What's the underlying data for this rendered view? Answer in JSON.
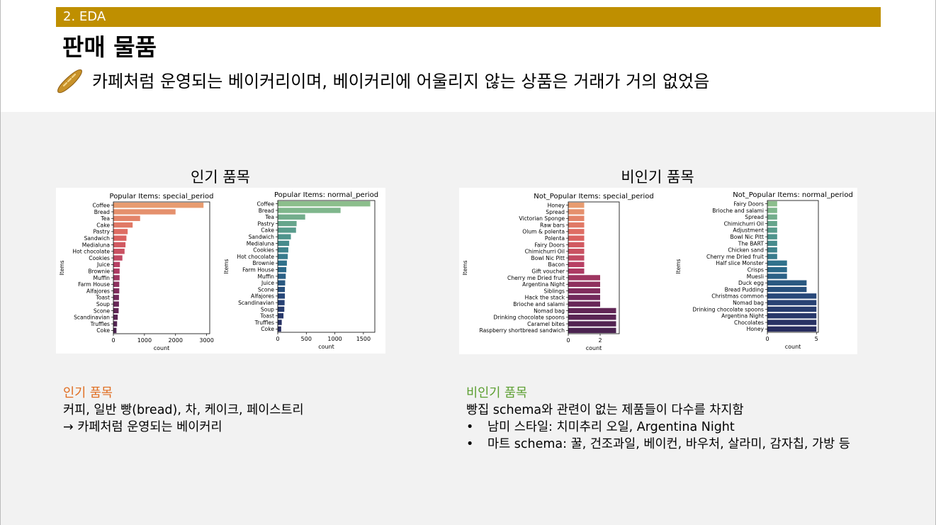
{
  "header": {
    "section": "2. EDA",
    "title": "판매 물품",
    "subtitle": "카페처럼 운영되는 베이커리이며, 베이커리에 어울리지 않는 상품은 거래가 거의 없었음"
  },
  "panels": {
    "popular_title": "인기 품목",
    "unpopular_title": "비인기 품목"
  },
  "notes": {
    "popular": {
      "heading": "인기 품목",
      "line1": "커피, 일반 빵(bread), 차, 케이크, 페이스트리",
      "line2": "→ 카페처럼 운영되는 베이커리"
    },
    "unpopular": {
      "heading": "비인기 품목",
      "line1": "빵집 schema와 관련이 없는 제품들이 다수를 차지함",
      "bullet1": "남미 스타일: 치미추리 오일, Argentina Night",
      "bullet2": "마트 schema: 꿀, 건조과일, 베이컨, 바우처, 살라미, 감자칩, 가방 등",
      "bullet_symbol": "•"
    }
  },
  "chart_data": [
    {
      "type": "bar",
      "orientation": "horizontal",
      "title": "Popular Items: special_period",
      "xlabel": "count",
      "ylabel": "Items",
      "xlim": [
        0,
        3100
      ],
      "xticks": [
        0,
        1000,
        2000,
        3000
      ],
      "palette": "flare",
      "categories": [
        "Coffee",
        "Bread",
        "Tea",
        "Cake",
        "Pastry",
        "Sandwich",
        "Medialuna",
        "Hot chocolate",
        "Cookies",
        "Juice",
        "Brownie",
        "Muffin",
        "Farm House",
        "Alfajores",
        "Toast",
        "Soup",
        "Scone",
        "Scandinavian",
        "Truffles",
        "Coke"
      ],
      "values": [
        2900,
        2000,
        860,
        620,
        460,
        420,
        390,
        360,
        290,
        210,
        200,
        200,
        190,
        190,
        180,
        180,
        170,
        140,
        120,
        100
      ]
    },
    {
      "type": "bar",
      "orientation": "horizontal",
      "title": "Popular Items: normal_period",
      "xlabel": "count",
      "ylabel": "Items",
      "xlim": [
        0,
        1700
      ],
      "xticks": [
        0,
        500,
        1000,
        1500
      ],
      "palette": "crest",
      "categories": [
        "Coffee",
        "Bread",
        "Tea",
        "Pastry",
        "Cake",
        "Sandwich",
        "Medialuna",
        "Cookies",
        "Hot chocolate",
        "Brownie",
        "Farm House",
        "Muffin",
        "Juice",
        "Scone",
        "Alfajores",
        "Scandinavian",
        "Soup",
        "Toast",
        "Truffles",
        "Coke"
      ],
      "values": [
        1620,
        1100,
        480,
        330,
        320,
        230,
        200,
        185,
        175,
        160,
        150,
        140,
        130,
        125,
        125,
        120,
        115,
        100,
        70,
        60
      ]
    },
    {
      "type": "bar",
      "orientation": "horizontal",
      "title": "Not_Popular Items: special_period",
      "xlabel": "count",
      "ylabel": "Items",
      "xlim": [
        0,
        3.2
      ],
      "xticks": [
        0,
        2
      ],
      "palette": "flare",
      "categories": [
        "Honey",
        "Spread",
        "Victorian Sponge",
        "Raw bars",
        "Olum & polenta",
        "Polenta",
        "Fairy Doors",
        "Chimichurri Oil",
        "Bowl Nic Pitt",
        "Bacon",
        "Gift voucher",
        "Cherry me Dried fruit",
        "Argentina Night",
        "Siblings",
        "Hack the stack",
        "Brioche and salami",
        "Nomad bag",
        "Drinking chocolate spoons",
        "Caramel bites",
        "Raspberry shortbread sandwich"
      ],
      "values": [
        1,
        1,
        1,
        1,
        1,
        1,
        1,
        1,
        1,
        1,
        1,
        2,
        2,
        2,
        2,
        2,
        3,
        3,
        3,
        3
      ]
    },
    {
      "type": "bar",
      "orientation": "horizontal",
      "title": "Not_Popular Items: normal_period",
      "xlabel": "count",
      "ylabel": "Items",
      "xlim": [
        0,
        5.2
      ],
      "xticks": [
        0,
        5
      ],
      "palette": "crest",
      "categories": [
        "Fairy Doors",
        "Brioche and salami",
        "Spread",
        "Chimichurri Oil",
        "Adjustment",
        "Bowl Nic Pitt",
        "The BART",
        "Chicken sand",
        "Cherry me Dried fruit",
        "Half slice Monster",
        "Crisps",
        "Muesli",
        "Duck egg",
        "Bread Pudding",
        "Christmas common",
        "Nomad bag",
        "Drinking chocolate spoons",
        "Argentina Night",
        "Chocolates",
        "Honey"
      ],
      "values": [
        1,
        1,
        1,
        1,
        1,
        1,
        1,
        1,
        1,
        2,
        2,
        2,
        4,
        4,
        5,
        5,
        5,
        5,
        5,
        5
      ]
    }
  ]
}
